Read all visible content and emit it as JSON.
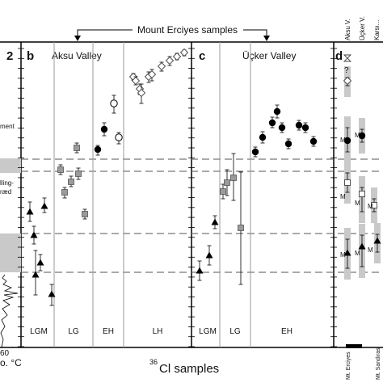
{
  "figure": {
    "top_title": "Mount Erciyes samples",
    "xlabel_sup": "36",
    "xlabel_main": "Cl samples",
    "left_fragments": {
      "panel_num": "2",
      "text1": "ment",
      "text2a": "lling-",
      "text2b": "ræd",
      "axis_end": "60",
      "axis_label": "o. °C"
    }
  },
  "chart_data": [
    {
      "id": "b",
      "type": "scatter",
      "panel_letter": "b",
      "title": "Aksu Valley",
      "period_labels": [
        "LGM",
        "LG",
        "EH",
        "LH"
      ],
      "series": [
        {
          "marker": "triangle",
          "points": [
            {
              "y": 262,
              "lo": 250,
              "hi": 274
            },
            {
              "y": 291,
              "lo": 280,
              "hi": 302
            },
            {
              "y": 340,
              "lo": 310,
              "hi": 365
            },
            {
              "y": 325,
              "lo": 315,
              "hi": 335
            },
            {
              "y": 364,
              "lo": 352,
              "hi": 378
            },
            {
              "y": 255,
              "lo": 245,
              "hi": 263
            }
          ]
        },
        {
          "marker": "square",
          "points": [
            {
              "y": 210,
              "lo": 204,
              "hi": 216
            },
            {
              "y": 238,
              "lo": 232,
              "hi": 245
            },
            {
              "y": 225,
              "lo": 218,
              "hi": 231
            },
            {
              "y": 215,
              "lo": 208,
              "hi": 222
            },
            {
              "y": 265,
              "lo": 259,
              "hi": 271
            },
            {
              "y": 183,
              "lo": 177,
              "hi": 189
            }
          ]
        },
        {
          "marker": "circle",
          "points": [
            {
              "y": 185,
              "lo": 180,
              "hi": 192
            },
            {
              "y": 160,
              "lo": 152,
              "hi": 168
            }
          ]
        },
        {
          "marker": "open-circle",
          "points": [
            {
              "y": 170,
              "lo": 164,
              "hi": 178
            },
            {
              "y": 128,
              "lo": 118,
              "hi": 140
            }
          ]
        },
        {
          "marker": "diamond",
          "points": [
            {
              "y": 95,
              "lo": 91,
              "hi": 99
            },
            {
              "y": 100,
              "lo": 95,
              "hi": 105
            },
            {
              "y": 110,
              "lo": 104,
              "hi": 117
            },
            {
              "y": 95,
              "lo": 89,
              "hi": 102
            },
            {
              "y": 115,
              "lo": 104,
              "hi": 128
            },
            {
              "y": 92,
              "lo": 86,
              "hi": 100
            },
            {
              "y": 82,
              "lo": 77,
              "hi": 88
            },
            {
              "y": 75,
              "lo": 70,
              "hi": 81
            },
            {
              "y": 70,
              "lo": 66,
              "hi": 74
            },
            {
              "y": 65,
              "lo": 62,
              "hi": 69
            }
          ]
        }
      ]
    },
    {
      "id": "c",
      "type": "scatter",
      "panel_letter": "c",
      "title": "Üçker Valley",
      "period_labels": [
        "LGM",
        "LG",
        "EH"
      ],
      "series": [
        {
          "marker": "triangle",
          "points": [
            {
              "y": 335,
              "lo": 323,
              "hi": 347
            },
            {
              "y": 316,
              "lo": 304,
              "hi": 328
            },
            {
              "y": 275,
              "lo": 267,
              "hi": 283
            }
          ]
        },
        {
          "marker": "square",
          "points": [
            {
              "y": 237,
              "lo": 228,
              "hi": 246
            },
            {
              "y": 226,
              "lo": 210,
              "hi": 242
            },
            {
              "y": 220,
              "lo": 190,
              "hi": 248
            },
            {
              "y": 282,
              "lo": 213,
              "hi": 352
            }
          ]
        },
        {
          "marker": "circle",
          "points": [
            {
              "y": 188,
              "lo": 182,
              "hi": 194
            },
            {
              "y": 170,
              "lo": 163,
              "hi": 177
            },
            {
              "y": 152,
              "lo": 145,
              "hi": 158
            },
            {
              "y": 138,
              "lo": 130,
              "hi": 146
            },
            {
              "y": 158,
              "lo": 152,
              "hi": 164
            },
            {
              "y": 178,
              "lo": 172,
              "hi": 184
            },
            {
              "y": 155,
              "lo": 149,
              "hi": 161
            },
            {
              "y": 158,
              "lo": 152,
              "hi": 164
            },
            {
              "y": 175,
              "lo": 169,
              "hi": 181
            }
          ]
        }
      ]
    },
    {
      "id": "d",
      "type": "scatter",
      "panel_letter": "d",
      "column_labels": [
        "Aksu V.",
        "Üçker V.",
        "Karsı..."
      ],
      "bottom_labels": [
        "Mt. Erciyes",
        "Mt. Sandıras"
      ],
      "question_mark": "?",
      "mean_label": "M",
      "series": [
        {
          "marker": "circle",
          "points": [
            {
              "y": 174,
              "lo": 158,
              "hi": 188
            },
            {
              "y": 168,
              "lo": 160,
              "hi": 176
            }
          ]
        },
        {
          "marker": "open-square",
          "points": [
            {
              "y": 226,
              "lo": 214,
              "hi": 238
            },
            {
              "y": 240,
              "lo": 232,
              "hi": 262
            },
            {
              "y": 254,
              "lo": 246,
              "hi": 262
            }
          ]
        },
        {
          "marker": "triangle",
          "points": [
            {
              "y": 313,
              "lo": 296,
              "hi": 332
            },
            {
              "y": 305,
              "lo": 291,
              "hi": 330
            },
            {
              "y": 298,
              "lo": 290,
              "hi": 312
            }
          ]
        },
        {
          "marker": "diamond",
          "points": [
            {
              "y": 100,
              "lo": 96,
              "hi": 106
            }
          ]
        },
        {
          "marker": "hourglass",
          "points": [
            {
              "y": 72,
              "lo": 70,
              "hi": 75
            }
          ]
        }
      ]
    }
  ]
}
